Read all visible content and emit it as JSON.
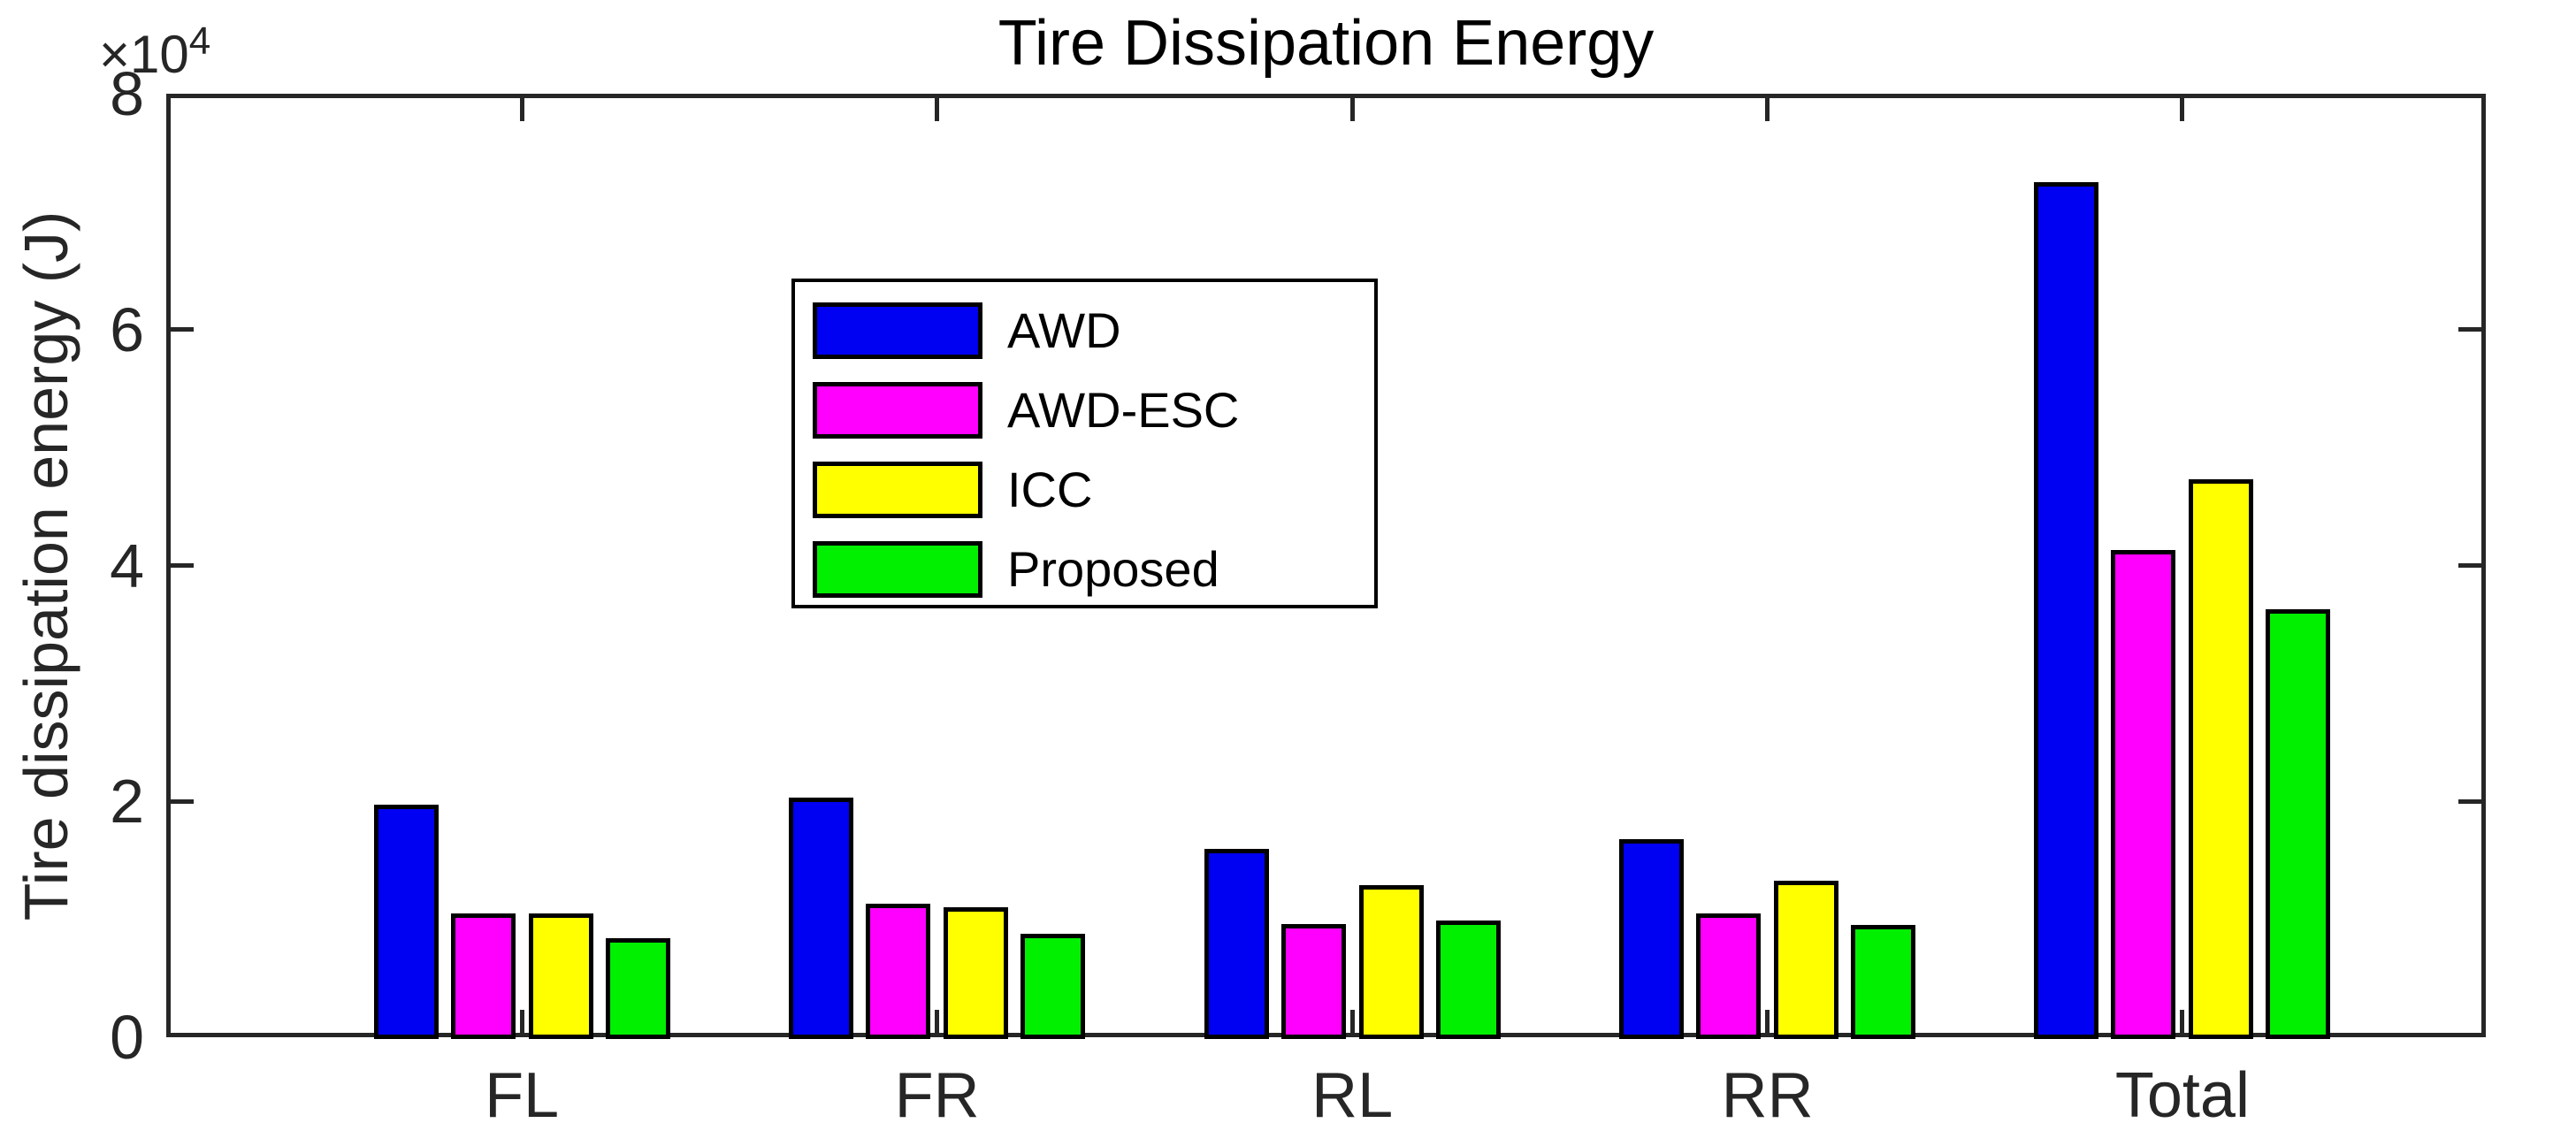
{
  "figure": {
    "title": "Tire Dissipation Energy",
    "y_axis_label": "Tire dissipation energy (J)",
    "offset_base": "×10",
    "offset_exponent": "4"
  },
  "chart_data": {
    "type": "bar",
    "title": "Tire Dissipation Energy",
    "xlabel": "",
    "ylabel": "Tire dissipation energy (J)",
    "y_multiplier_text": "×10⁴",
    "y_unit_multiplier": 10000,
    "values_unit": "J",
    "ylim": [
      0,
      8
    ],
    "yticks": [
      0,
      2,
      4,
      6,
      8
    ],
    "ytick_labels": [
      "0",
      "2",
      "4",
      "6",
      "8"
    ],
    "categories": [
      "FL",
      "FR",
      "RL",
      "RR",
      "Total"
    ],
    "series": [
      {
        "name": "AWD",
        "color": "#0000f2",
        "values": [
          1.97,
          2.03,
          1.6,
          1.68,
          7.25
        ]
      },
      {
        "name": "AWD-ESC",
        "color": "#ff00ff",
        "values": [
          1.05,
          1.13,
          0.96,
          1.05,
          4.13
        ]
      },
      {
        "name": "ICC",
        "color": "#ffff00",
        "values": [
          1.05,
          1.1,
          1.29,
          1.33,
          4.73
        ]
      },
      {
        "name": "Proposed",
        "color": "#00f000",
        "values": [
          0.84,
          0.88,
          0.99,
          0.95,
          3.63
        ]
      }
    ],
    "bar_edge_color": "#000000",
    "grid": false,
    "legend": {
      "entries": [
        "AWD",
        "AWD-ESC",
        "ICC",
        "Proposed"
      ],
      "position": "upper-left-of-center",
      "border_color": "#000000",
      "background": "#ffffff"
    }
  }
}
